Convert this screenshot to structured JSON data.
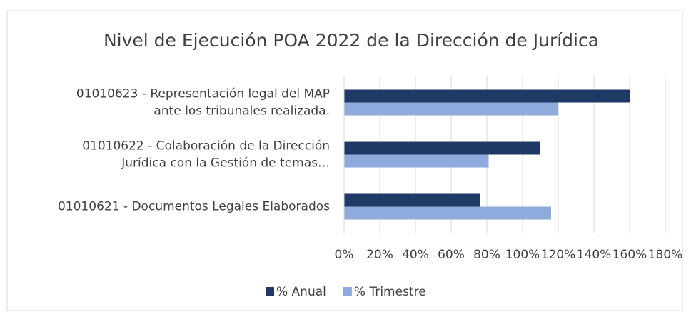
{
  "chart_data": {
    "type": "hbar",
    "title": "Nivel de Ejecución POA 2022 de la Dirección de Jurídica",
    "categories": [
      "01010623 - Representación legal del MAP\nante los tribunales realizada.",
      "01010622 - Colaboración de la Dirección\nJurídica con la Gestión de temas…",
      "01010621 - Documentos Legales Elaborados"
    ],
    "series": [
      {
        "name": "% Anual",
        "color": "#203864",
        "values": [
          160,
          110,
          76
        ]
      },
      {
        "name": "% Trimestre",
        "color": "#8faadc",
        "values": [
          120,
          81,
          116
        ]
      }
    ],
    "xlim": [
      0,
      180
    ],
    "xticks": [
      {
        "value": 0,
        "label": "0%"
      },
      {
        "value": 20,
        "label": "20%"
      },
      {
        "value": 40,
        "label": "40%"
      },
      {
        "value": 60,
        "label": "60%"
      },
      {
        "value": 80,
        "label": "80%"
      },
      {
        "value": 100,
        "label": "100%"
      },
      {
        "value": 120,
        "label": "120%"
      },
      {
        "value": 140,
        "label": "140%"
      },
      {
        "value": 160,
        "label": "160%"
      },
      {
        "value": 180,
        "label": "180%"
      }
    ],
    "grid": true,
    "legend": "bottom"
  }
}
